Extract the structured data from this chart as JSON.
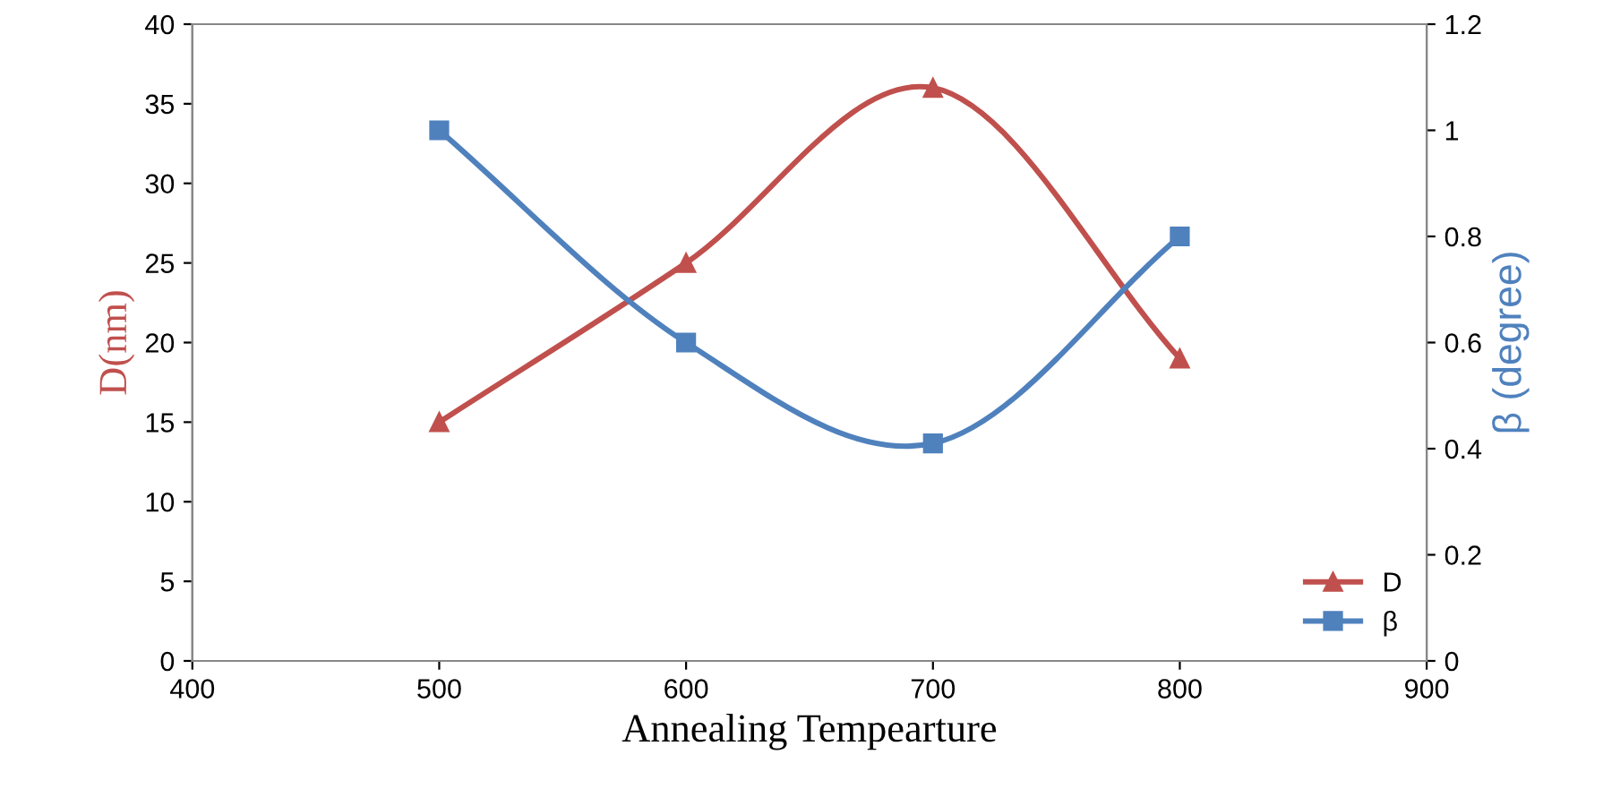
{
  "chart_data": {
    "type": "line",
    "xlabel": "Annealing Tempearture",
    "ylabel": "D(nm)",
    "y2label": "β (degree)",
    "x": [
      500,
      600,
      700,
      800
    ],
    "series": [
      {
        "name": "D",
        "color": "#c0504d",
        "values": [
          15,
          25,
          36,
          19
        ],
        "marker": "triangle"
      },
      {
        "name": "β",
        "color": "#4f81bd",
        "values": [
          1.0,
          0.6,
          0.41,
          0.8
        ],
        "marker": "square",
        "axis": "y2"
      }
    ],
    "xlim": [
      400,
      900
    ],
    "xticks": [
      400,
      500,
      600,
      700,
      800,
      900
    ],
    "ylim": [
      0,
      40
    ],
    "yticks": [
      0,
      5,
      10,
      15,
      20,
      25,
      30,
      35,
      40
    ],
    "y2lim": [
      0,
      1.2
    ],
    "y2ticks": [
      0,
      {
        "value": 0.2,
        "label": "0.2"
      },
      {
        "value": 0.4,
        "label": "0.4"
      },
      {
        "value": 0.6,
        "label": "0.6"
      },
      {
        "value": 0.8,
        "label": "0.8"
      },
      1,
      {
        "value": 1.2,
        "label": "1.2"
      }
    ],
    "grid": false,
    "legend": "lower right",
    "line_style": "solid"
  }
}
